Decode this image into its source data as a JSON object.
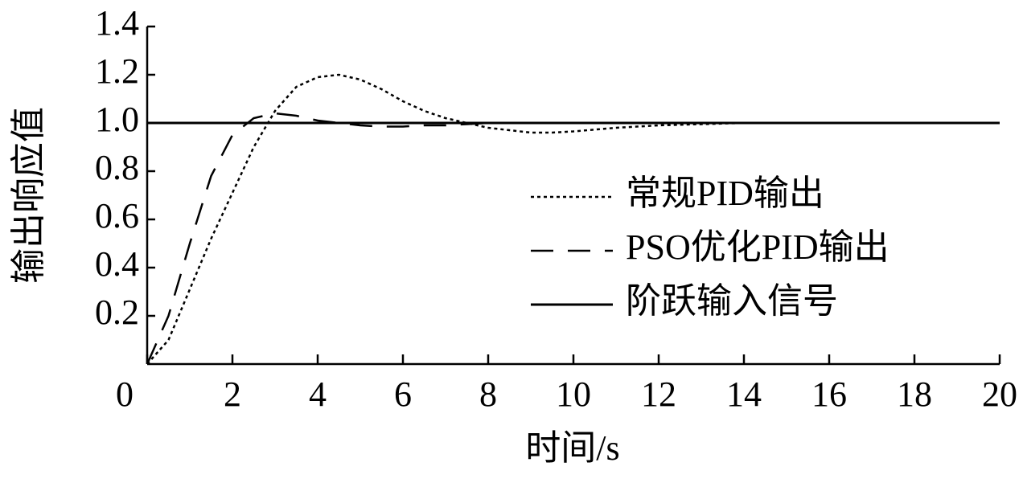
{
  "chart_data": {
    "type": "line",
    "xlabel": "时间/s",
    "ylabel": "输出响应值",
    "x": [
      0,
      0.5,
      1,
      1.5,
      2,
      2.5,
      3,
      3.5,
      4,
      4.5,
      5,
      5.5,
      6,
      6.5,
      7,
      7.5,
      8,
      8.5,
      9,
      9.5,
      10,
      11,
      12,
      13,
      14,
      16,
      18,
      20
    ],
    "series": [
      {
        "name": "常规PID输出",
        "color": "#000000",
        "linestyle": "dotted",
        "values": [
          0,
          0.1,
          0.31,
          0.52,
          0.71,
          0.9,
          1.05,
          1.15,
          1.19,
          1.2,
          1.18,
          1.14,
          1.09,
          1.05,
          1.02,
          1.0,
          0.98,
          0.97,
          0.96,
          0.96,
          0.965,
          0.98,
          0.99,
          0.995,
          1.0,
          1.0,
          1.0,
          1.0
        ]
      },
      {
        "name": "PSO优化PID输出",
        "color": "#000000",
        "linestyle": "dashed",
        "values": [
          0,
          0.2,
          0.5,
          0.78,
          0.95,
          1.02,
          1.04,
          1.03,
          1.01,
          1.0,
          0.99,
          0.985,
          0.985,
          0.99,
          0.99,
          0.995,
          1.0,
          1.0,
          1.0,
          1.0,
          1.0,
          1.0,
          1.0,
          1.0,
          1.0,
          1.0,
          1.0,
          1.0
        ]
      },
      {
        "name": "阶跃输入信号",
        "color": "#000000",
        "linestyle": "solid",
        "values": [
          1,
          1,
          1,
          1,
          1,
          1,
          1,
          1,
          1,
          1,
          1,
          1,
          1,
          1,
          1,
          1,
          1,
          1,
          1,
          1,
          1,
          1,
          1,
          1,
          1,
          1,
          1,
          1
        ]
      }
    ],
    "xlim": [
      0,
      20
    ],
    "xticks": [
      0,
      2,
      4,
      6,
      8,
      10,
      12,
      14,
      16,
      18,
      20
    ],
    "ylim": [
      0,
      1.4
    ],
    "yticks": [
      0.2,
      0.4,
      0.6,
      0.8,
      {
        "value": 1,
        "label": "1.0"
      },
      1.2,
      1.4
    ],
    "grid": false,
    "legend": "right"
  }
}
